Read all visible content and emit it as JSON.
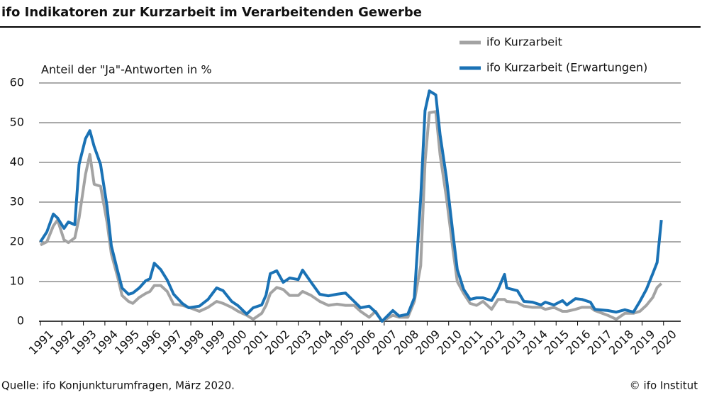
{
  "chart_data": {
    "type": "line",
    "title": "ifo Indikatoren zur Kurzarbeit im Verarbeitenden Gewerbe",
    "y_label": "Anteil der \"Ja\"-Antworten in %",
    "source": "Quelle: ifo Konjunkturumfragen, März 2020.",
    "credit": "© ifo Institut",
    "legend": "top-right",
    "grid": true,
    "xlim": [
      1991,
      2020.8
    ],
    "xticks": [
      1991,
      1992,
      1993,
      1994,
      1995,
      1996,
      1997,
      1998,
      1999,
      2000,
      2001,
      2002,
      2003,
      2004,
      2005,
      2006,
      2007,
      2008,
      2009,
      2010,
      2011,
      2012,
      2013,
      2014,
      2015,
      2016,
      2017,
      2018,
      2019,
      2020
    ],
    "ylim": [
      0,
      60
    ],
    "yticks": [
      0,
      10,
      20,
      30,
      40,
      50,
      60
    ],
    "x": [
      1991.0,
      1991.3,
      1991.6,
      1991.8,
      1992.1,
      1992.3,
      1992.6,
      1992.8,
      1993.1,
      1993.3,
      1993.5,
      1993.8,
      1994.1,
      1994.3,
      1994.6,
      1994.8,
      1995.1,
      1995.3,
      1995.6,
      1995.9,
      1996.1,
      1996.3,
      1996.6,
      1996.9,
      1997.2,
      1997.6,
      1997.9,
      1998.4,
      1998.8,
      1999.2,
      1999.5,
      1999.9,
      2000.2,
      2000.6,
      2000.9,
      2001.3,
      2001.5,
      2001.7,
      2002.0,
      2002.3,
      2002.6,
      2003.0,
      2003.2,
      2003.6,
      2004.0,
      2004.4,
      2004.8,
      2005.2,
      2005.6,
      2005.9,
      2006.3,
      2006.6,
      2006.9,
      2007.4,
      2007.7,
      2008.1,
      2008.4,
      2008.7,
      2008.9,
      2009.1,
      2009.4,
      2009.6,
      2009.9,
      2010.2,
      2010.4,
      2010.7,
      2011.0,
      2011.3,
      2011.6,
      2012.0,
      2012.3,
      2012.6,
      2012.7,
      2013.2,
      2013.5,
      2013.9,
      2014.3,
      2014.5,
      2014.9,
      2015.3,
      2015.5,
      2015.9,
      2016.2,
      2016.6,
      2016.8,
      2017.4,
      2017.8,
      2018.2,
      2018.6,
      2018.9,
      2019.2,
      2019.5,
      2019.7,
      2019.9
    ],
    "series": [
      {
        "name": "ifo Kurzarbeit",
        "color": "#a3a3a3",
        "values": [
          19.2,
          20,
          24,
          25.5,
          20.5,
          19.8,
          21,
          26,
          37,
          42,
          34.5,
          34,
          25,
          17,
          11,
          6.5,
          5,
          4.5,
          6,
          7,
          7.5,
          9,
          9,
          7.5,
          4.3,
          4,
          3.5,
          2.5,
          3.5,
          5,
          4.5,
          3.5,
          2.5,
          1.5,
          0.5,
          2,
          4,
          7,
          8.5,
          8,
          6.5,
          6.5,
          7.5,
          6.5,
          5,
          4,
          4.3,
          4,
          4,
          2.5,
          1,
          2.5,
          0,
          1.5,
          1,
          1,
          5,
          14,
          40,
          52.5,
          52.8,
          42,
          31,
          18,
          10,
          7,
          4.5,
          4,
          5,
          3,
          5.5,
          5.5,
          5,
          4.7,
          3.8,
          3.5,
          3.5,
          3,
          3.5,
          2.5,
          2.5,
          3,
          3.5,
          3.5,
          2.7,
          1.5,
          0.5,
          2,
          2,
          2.5,
          4,
          6,
          8.5,
          9.5
        ]
      },
      {
        "name": "ifo Kurzarbeit (Erwartungen)",
        "color": "#1a72b5",
        "values": [
          20,
          22.5,
          27,
          26,
          23.4,
          25,
          24.3,
          39.5,
          46,
          48,
          44,
          39.5,
          29,
          19,
          12.5,
          8.4,
          6.8,
          7.1,
          8.4,
          10.2,
          10.7,
          14.6,
          13,
          10.4,
          6.8,
          4.5,
          3.4,
          3.8,
          5.5,
          8.4,
          7.7,
          5,
          3.9,
          1.8,
          3.4,
          4.1,
          6.6,
          12,
          12.7,
          9.8,
          10.9,
          10.5,
          12.9,
          9.8,
          6.8,
          6.4,
          6.8,
          7.1,
          5,
          3.4,
          3.8,
          2.3,
          0,
          2.7,
          1.3,
          1.8,
          5.9,
          31,
          53,
          58,
          57,
          47,
          36,
          22,
          13,
          8,
          5.5,
          5.9,
          5.9,
          5.2,
          8,
          11.8,
          8.4,
          7.7,
          5,
          4.8,
          4.1,
          4.8,
          4.1,
          5.2,
          4.1,
          5.7,
          5.5,
          4.8,
          3,
          2.7,
          2.3,
          2.9,
          2.3,
          5,
          8,
          12,
          14.8,
          25.5
        ]
      }
    ]
  }
}
